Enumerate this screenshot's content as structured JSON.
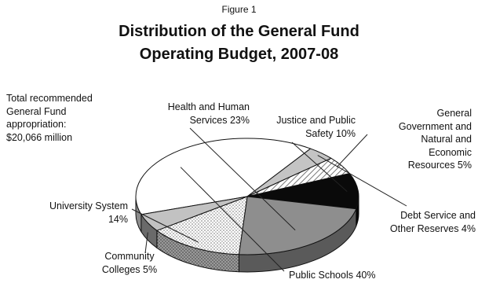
{
  "figure_label": "Figure 1",
  "title_line1": "Distribution of the General Fund",
  "title_line2": "Operating Budget, 2007-08",
  "note": {
    "line1": "Total recommended",
    "line2": "General Fund",
    "line3": "appropriation:",
    "line4": "$20,066 million"
  },
  "chart_data": {
    "type": "pie",
    "title": "Distribution of the General Fund Operating Budget, 2007-08",
    "total_label": "Total recommended General Fund appropriation: $20,066 million",
    "slices": [
      {
        "name": "Public Schools",
        "value": 40,
        "text": "Public Schools 40%",
        "fill": "#ffffff",
        "side": "#8c8c8c"
      },
      {
        "name": "Debt Service and Other Reserves",
        "value": 4,
        "text": "Debt Service and Other Reserves 4%",
        "fill": "#c4c4c4",
        "side": "#6e6e6e"
      },
      {
        "name": "General Government and Natural and Economic Resources",
        "value": 5,
        "text": "General Government and Natural and Economic Resources 5%",
        "fill": "hatch",
        "side": "#8a8a8a"
      },
      {
        "name": "Justice and Public Safety",
        "value": 10,
        "text": "Justice and Public Safety 10%",
        "fill": "#0a0a0a",
        "side": "#000000"
      },
      {
        "name": "Health and Human Services",
        "value": 23,
        "text": "Health and Human Services 23%",
        "fill": "#8e8e8e",
        "side": "#5a5a5a"
      },
      {
        "name": "University System",
        "value": 14,
        "text": "University System 14%",
        "fill": "dots",
        "side": "dotsdark"
      },
      {
        "name": "Community Colleges",
        "value": 5,
        "text": "Community Colleges 5%",
        "fill": "#c2c2c2",
        "side": "#6a6a6a"
      }
    ]
  },
  "labels": {
    "hhs": {
      "l1": "Health and Human",
      "l2": "Services 23%"
    },
    "jps": {
      "l1": "Justice and Public",
      "l2": "Safety 10%"
    },
    "gg": {
      "l1": "General",
      "l2": "Government and",
      "l3": "Natural and",
      "l4": "Economic",
      "l5": "Resources 5%"
    },
    "debt": {
      "l1": "Debt Service and",
      "l2": "Other Reserves 4%"
    },
    "ps": {
      "l1": "Public Schools 40%"
    },
    "cc": {
      "l1": "Community",
      "l2": "Colleges 5%"
    },
    "us": {
      "l1": "University System",
      "l2": "14%"
    }
  }
}
